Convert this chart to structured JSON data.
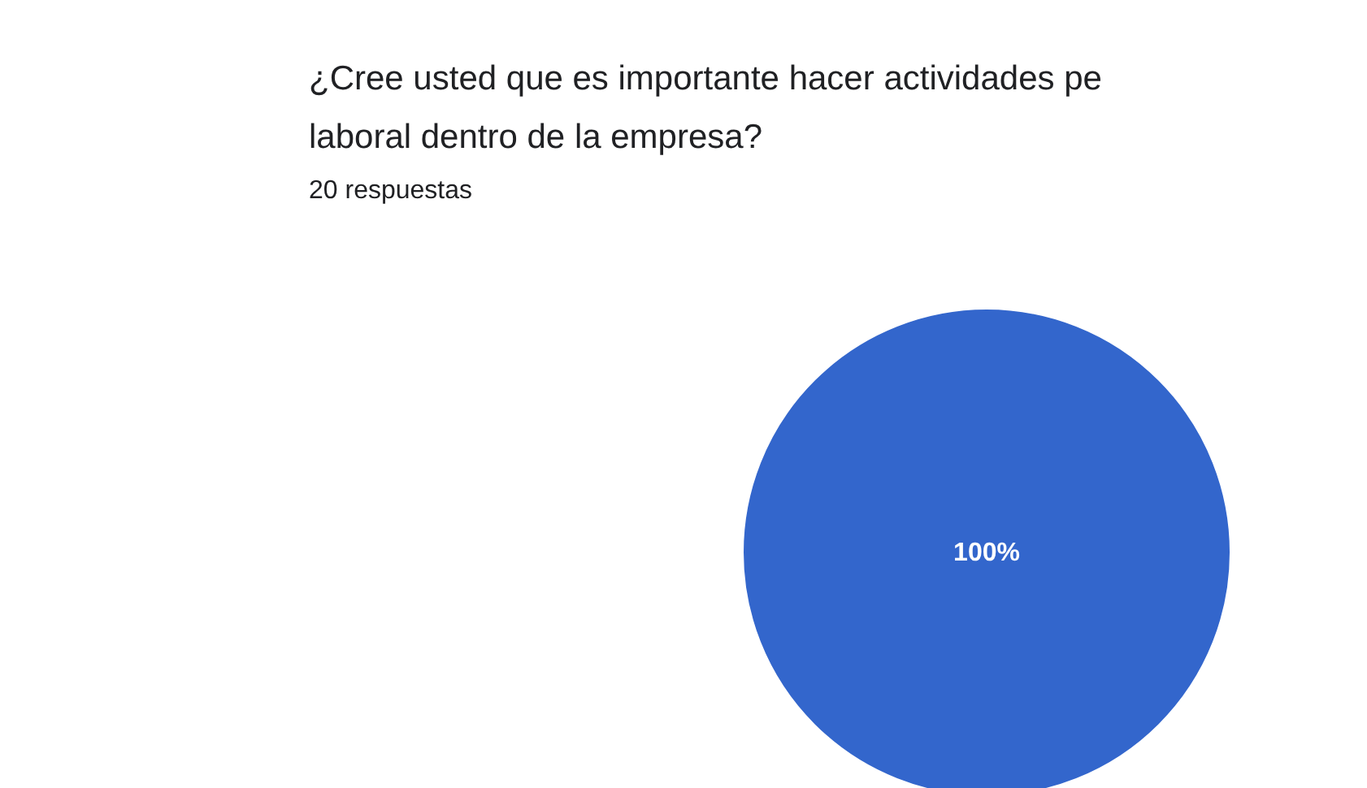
{
  "chart_data": {
    "type": "pie",
    "title": [
      "¿Cree usted que es importante hacer actividades pe",
      "laboral dentro de la empresa?"
    ],
    "subtitle": "20 respuestas",
    "categories": [
      null
    ],
    "values": [
      100
    ],
    "colors": [
      "#3366cc"
    ],
    "value_labels": [
      "100%"
    ]
  }
}
